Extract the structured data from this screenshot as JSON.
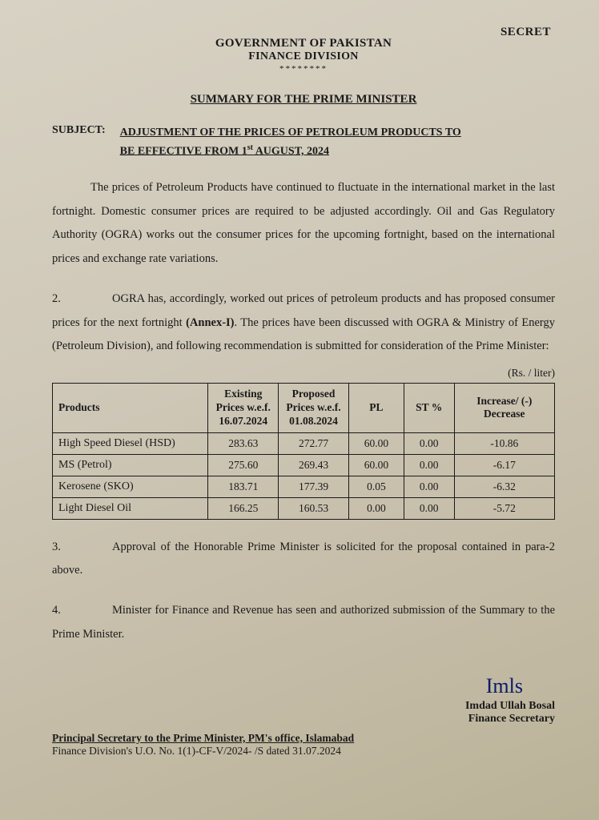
{
  "classification": "SECRET",
  "header": {
    "gov": "GOVERNMENT OF PAKISTAN",
    "division": "FINANCE DIVISION",
    "stars": "********"
  },
  "summary_title": "SUMMARY FOR THE PRIME MINISTER",
  "subject": {
    "label": "SUBJECT:",
    "line1": "ADJUSTMENT OF THE PRICES OF PETROLEUM PRODUCTS TO",
    "line2_a": "BE EFFECTIVE FROM 1",
    "line2_sup": "st",
    "line2_b": " AUGUST, 2024"
  },
  "para1": "The prices of Petroleum Products have continued to fluctuate in the international market in the last fortnight. Domestic consumer prices are required to be adjusted accordingly. Oil and Gas Regulatory Authority (OGRA) works out the consumer prices for the upcoming fortnight, based on the international prices and exchange rate variations.",
  "para2": {
    "num": "2.",
    "text_a": "OGRA has, accordingly, worked out prices of petroleum products and has proposed consumer prices for the next fortnight ",
    "annex": "(Annex-I)",
    "text_b": ". The prices have been discussed with OGRA & Ministry of Energy (Petroleum Division), and following recommendation is submitted for consideration of the Prime Minister:"
  },
  "unit": "(Rs. / liter)",
  "table": {
    "headers": {
      "products": "Products",
      "existing": "Existing Prices w.e.f. 16.07.2024",
      "proposed": "Proposed Prices w.e.f. 01.08.2024",
      "pl": "PL",
      "st": "ST %",
      "change": "Increase/ (-) Decrease"
    },
    "rows": [
      {
        "product": "High Speed Diesel (HSD)",
        "existing": "283.63",
        "proposed": "272.77",
        "pl": "60.00",
        "st": "0.00",
        "change": "-10.86"
      },
      {
        "product": "MS (Petrol)",
        "existing": "275.60",
        "proposed": "269.43",
        "pl": "60.00",
        "st": "0.00",
        "change": "-6.17"
      },
      {
        "product": "Kerosene (SKO)",
        "existing": "183.71",
        "proposed": "177.39",
        "pl": "0.05",
        "st": "0.00",
        "change": "-6.32"
      },
      {
        "product": "Light Diesel Oil",
        "existing": "166.25",
        "proposed": "160.53",
        "pl": "0.00",
        "st": "0.00",
        "change": "-5.72"
      }
    ]
  },
  "para3": {
    "num": "3.",
    "text": "Approval of the Honorable Prime Minister is solicited for the proposal contained in para-2 above."
  },
  "para4": {
    "num": "4.",
    "text": "Minister for Finance and Revenue has seen and authorized submission of the Summary to the Prime Minister."
  },
  "signature": {
    "scribble": "Imls",
    "name": "Imdad Ullah Bosal",
    "title": "Finance Secretary"
  },
  "footer": {
    "line1": "Principal Secretary to the Prime Minister, PM's office, Islamabad",
    "line2": "Finance Division's U.O. No. 1(1)-CF-V/2024-   /S dated  31.07.2024"
  }
}
